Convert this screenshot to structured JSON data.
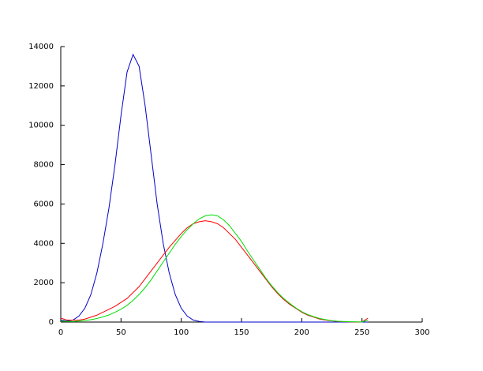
{
  "chart_data": {
    "type": "line",
    "x": [
      0,
      5,
      10,
      15,
      20,
      25,
      30,
      35,
      40,
      45,
      50,
      55,
      60,
      65,
      70,
      75,
      80,
      85,
      90,
      95,
      100,
      105,
      110,
      115,
      120,
      125,
      130,
      135,
      140,
      145,
      150,
      155,
      160,
      165,
      170,
      175,
      180,
      185,
      190,
      195,
      200,
      205,
      210,
      215,
      220,
      225,
      230,
      235,
      240,
      245,
      250,
      255
    ],
    "series": [
      {
        "color": "#0000cc",
        "values": [
          100,
          50,
          100,
          300,
          700,
          1400,
          2500,
          4000,
          5800,
          8000,
          10500,
          12700,
          13600,
          13000,
          11000,
          8500,
          6000,
          4000,
          2500,
          1400,
          700,
          300,
          100,
          30,
          0,
          0,
          0,
          0,
          0,
          0,
          0,
          0,
          0,
          0,
          0,
          0,
          0,
          0,
          0,
          0,
          0,
          0,
          0,
          0,
          0,
          0,
          0,
          0,
          0,
          0,
          0,
          0
        ]
      },
      {
        "color": "#ff0000",
        "values": [
          200,
          100,
          100,
          100,
          150,
          250,
          350,
          500,
          650,
          800,
          1000,
          1200,
          1500,
          1800,
          2200,
          2600,
          3000,
          3400,
          3800,
          4150,
          4500,
          4800,
          5000,
          5100,
          5150,
          5100,
          5000,
          4800,
          4500,
          4200,
          3800,
          3400,
          3000,
          2600,
          2200,
          1800,
          1450,
          1150,
          900,
          700,
          500,
          350,
          250,
          150,
          100,
          60,
          30,
          20,
          10,
          5,
          5,
          200
        ]
      },
      {
        "color": "#00dd00",
        "values": [
          50,
          30,
          30,
          50,
          80,
          120,
          180,
          260,
          360,
          500,
          650,
          850,
          1100,
          1400,
          1750,
          2150,
          2600,
          3050,
          3500,
          3950,
          4350,
          4700,
          5000,
          5250,
          5400,
          5450,
          5400,
          5200,
          4900,
          4500,
          4100,
          3600,
          3150,
          2700,
          2250,
          1850,
          1500,
          1200,
          950,
          720,
          530,
          380,
          270,
          180,
          120,
          70,
          40,
          25,
          15,
          8,
          5,
          100
        ]
      }
    ],
    "xlim": [
      0,
      300
    ],
    "xticks": [
      0,
      50,
      100,
      150,
      200,
      250,
      300
    ],
    "ylim": [
      0,
      14000
    ],
    "yticks": [
      0,
      2000,
      4000,
      6000,
      8000,
      10000,
      12000,
      14000
    ]
  }
}
